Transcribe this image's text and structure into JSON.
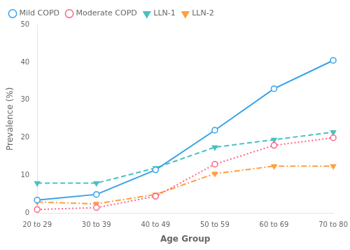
{
  "chart_data": {
    "type": "line",
    "xlabel": "Age Group",
    "ylabel": "Prevalence (%)",
    "categories": [
      "20 to 29",
      "30 to 39",
      "40 to 49",
      "50 to 59",
      "60 to 69",
      "70 to 80"
    ],
    "series": [
      {
        "name": "Mild COPD",
        "values": [
          3.5,
          5.0,
          11.5,
          22.0,
          33.0,
          40.5
        ],
        "marker": "open_circle",
        "line_style": "solid"
      },
      {
        "name": "Moderate COPD",
        "values": [
          1.0,
          1.5,
          4.5,
          13.0,
          18.0,
          20.0
        ],
        "marker": "open_circle",
        "line_style": "dotted"
      },
      {
        "name": "LLN-1",
        "values": [
          8.0,
          8.0,
          12.0,
          17.5,
          19.5,
          21.5
        ],
        "marker": "triangle_down",
        "line_style": "dashed"
      },
      {
        "name": "LLN-2",
        "values": [
          3.0,
          2.5,
          5.0,
          10.5,
          12.5,
          12.5
        ],
        "marker": "triangle_down",
        "line_style": "dashdot"
      }
    ],
    "ylim": [
      0,
      50
    ],
    "yticks": [
      0,
      10,
      20,
      30,
      40,
      50
    ],
    "grid": false,
    "legend": "upper left"
  }
}
